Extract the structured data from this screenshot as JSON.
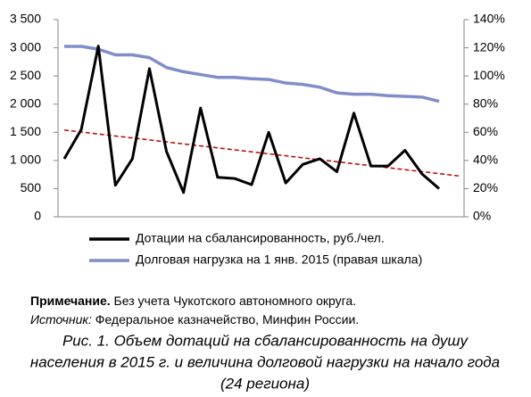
{
  "chart_data": {
    "type": "line",
    "categories": [
      null,
      null,
      null,
      null,
      null,
      null,
      null,
      null,
      null,
      null,
      null,
      null,
      null,
      null,
      null,
      null,
      null,
      null,
      null,
      null,
      null,
      null,
      null
    ],
    "series": [
      {
        "name": "Дотации на сбалансированность,  руб./чел.",
        "color": "#000000",
        "values": [
          1030,
          1550,
          3030,
          560,
          1030,
          2630,
          1160,
          430,
          1930,
          700,
          680,
          570,
          1500,
          600,
          930,
          1030,
          800,
          1840,
          900,
          900,
          1180,
          760,
          500
        ]
      },
      {
        "name": "Долговая нагрузка на 1 янв. 2015 (правая шкала)",
        "color": "#7f8ec8",
        "axis": "y2",
        "values": [
          121,
          121,
          119,
          115,
          115,
          113,
          106,
          103,
          101,
          99,
          99,
          98,
          97.5,
          95,
          94,
          92,
          88,
          87,
          87,
          86,
          85.5,
          85,
          82
        ]
      }
    ],
    "trend": {
      "color": "#c00000",
      "values": [
        1540,
        720
      ]
    },
    "ylim": [
      0,
      3500
    ],
    "yticks": [
      0,
      {
        "value": 500,
        "label": "500"
      },
      {
        "value": 1000,
        "label": "1 000"
      },
      {
        "value": 1500,
        "label": "1 500"
      },
      {
        "value": 2000,
        "label": "2 000"
      },
      {
        "value": 2500,
        "label": "2 500"
      },
      {
        "value": 3000,
        "label": "3 000"
      },
      {
        "value": 3500,
        "label": "3 500"
      }
    ],
    "y2lim": [
      0,
      140
    ],
    "y2ticks": [
      {
        "value": 0,
        "label": "0%"
      },
      {
        "value": 20,
        "label": "20%"
      },
      {
        "value": 40,
        "label": "40%"
      },
      {
        "value": 60,
        "label": "60%"
      },
      {
        "value": 80,
        "label": "80%"
      },
      {
        "value": 100,
        "label": "100%"
      },
      {
        "value": 120,
        "label": "120%"
      },
      {
        "value": 140,
        "label": "140%"
      }
    ],
    "legend": "bottom"
  },
  "notes": {
    "note_label": "Примечание.",
    "note_text": " Без учета Чукотского автономного округа.",
    "source_label": "Источник:",
    "source_text": " Федеральное казначейство, Минфин России."
  },
  "caption": [
    "Рис. 1. Объем дотаций на сбалансированность на душу",
    "населения в 2015 г. и величина долговой нагрузки на начало года",
    "(24 региона)"
  ]
}
